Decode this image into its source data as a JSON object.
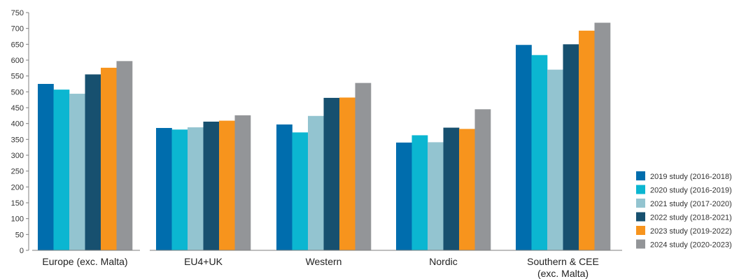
{
  "chart_data": {
    "type": "bar",
    "title": "",
    "xlabel": "",
    "ylabel": "",
    "ylim": [
      0,
      750
    ],
    "ytick_step": 50,
    "grid": false,
    "legend_position": "right",
    "categories": [
      [
        "Europe (exc. Malta)"
      ],
      [
        "EU4+UK"
      ],
      [
        "Western"
      ],
      [
        "Nordic"
      ],
      [
        "Southern & CEE",
        "(exc. Malta)"
      ]
    ],
    "series": [
      {
        "name": "2019 study (2016-2018)",
        "color": "#006DAD",
        "values": [
          525,
          386,
          397,
          340,
          648
        ]
      },
      {
        "name": "2020 study (2016-2019)",
        "color": "#0BB6D1",
        "values": [
          507,
          381,
          372,
          363,
          616
        ]
      },
      {
        "name": "2021 study (2017-2020)",
        "color": "#93C4D0",
        "values": [
          494,
          388,
          424,
          341,
          570
        ]
      },
      {
        "name": "2022 study (2018-2021)",
        "color": "#17506F",
        "values": [
          555,
          406,
          481,
          387,
          650
        ]
      },
      {
        "name": "2023 study (2019-2022)",
        "color": "#F7941D",
        "values": [
          576,
          409,
          482,
          383,
          693
        ]
      },
      {
        "name": "2024 study (2020-2023)",
        "color": "#939598",
        "values": [
          597,
          426,
          528,
          445,
          718
        ]
      }
    ]
  }
}
